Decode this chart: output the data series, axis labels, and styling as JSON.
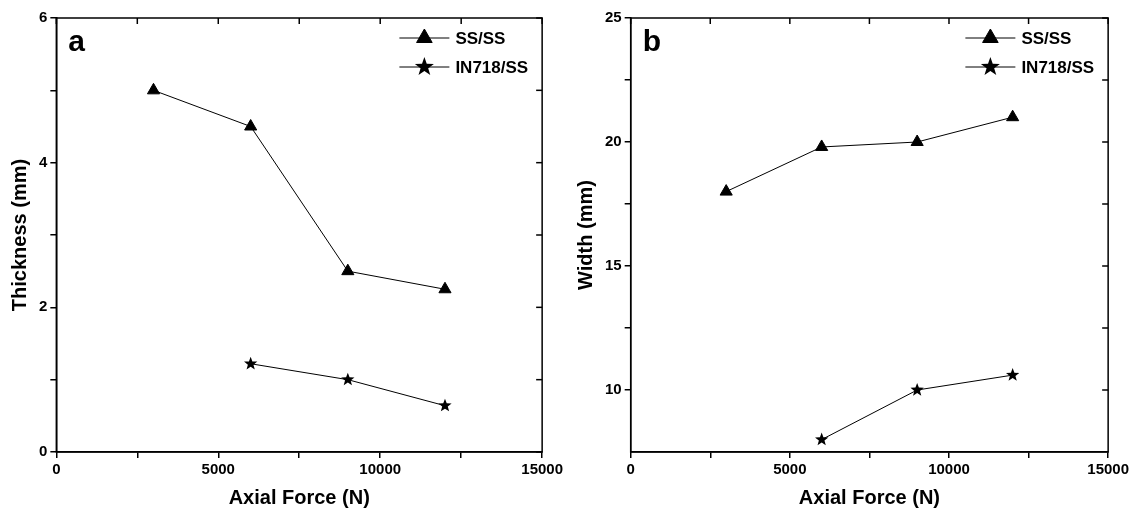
{
  "chart_data": [
    {
      "type": "line",
      "title": "a",
      "xlabel": "Axial Force (N)",
      "ylabel": "Thickness (mm)",
      "legend": "top right",
      "grid": false,
      "xlim": [
        0,
        15000
      ],
      "xticks": [
        0,
        {
          "value": 2500,
          "label": null
        },
        5000,
        {
          "value": 7500,
          "label": null
        },
        10000,
        {
          "value": 12500,
          "label": null
        },
        15000
      ],
      "ylim": [
        0,
        6
      ],
      "yticks": [
        0,
        {
          "value": 1,
          "label": null
        },
        2,
        {
          "value": 3,
          "label": null
        },
        4,
        {
          "value": 5,
          "label": null
        },
        6
      ],
      "series": [
        {
          "name": "SS/SS",
          "color": "#000000",
          "marker": "triangle",
          "x": [
            3000,
            6000,
            9000,
            12000
          ],
          "values": [
            5.0,
            4.5,
            2.5,
            2.25
          ]
        },
        {
          "name": "IN718/SS",
          "color": "#000000",
          "marker": "star",
          "x": [
            6000,
            9000,
            12000
          ],
          "values": [
            1.22,
            1.0,
            0.64
          ]
        }
      ]
    },
    {
      "type": "line",
      "title": "b",
      "xlabel": "Axial Force (N)",
      "ylabel": "Width (mm)",
      "legend": "top right",
      "grid": false,
      "xlim": [
        0,
        15000
      ],
      "xticks": [
        0,
        {
          "value": 2500,
          "label": null
        },
        5000,
        {
          "value": 7500,
          "label": null
        },
        10000,
        {
          "value": 12500,
          "label": null
        },
        15000
      ],
      "ylim": [
        7.5,
        25
      ],
      "yticks": [
        10,
        {
          "value": 12.5,
          "label": null
        },
        15,
        {
          "value": 17.5,
          "label": null
        },
        20,
        {
          "value": 22.5,
          "label": null
        },
        25
      ],
      "series": [
        {
          "name": "SS/SS",
          "color": "#000000",
          "marker": "triangle",
          "x": [
            3000,
            6000,
            9000,
            12000
          ],
          "values": [
            18.0,
            19.8,
            20.0,
            21.0
          ]
        },
        {
          "name": "IN718/SS",
          "color": "#000000",
          "marker": "star",
          "x": [
            6000,
            9000,
            12000
          ],
          "values": [
            8.0,
            10.0,
            10.6
          ]
        }
      ]
    }
  ]
}
